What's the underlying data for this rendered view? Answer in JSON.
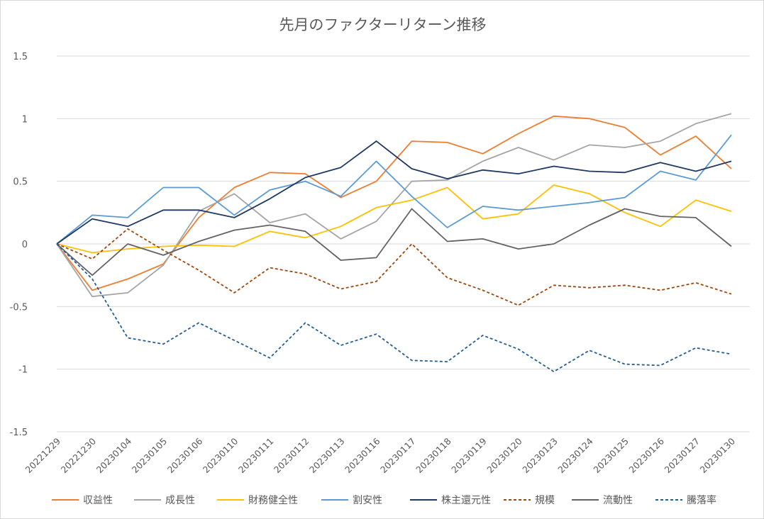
{
  "chart_data": {
    "type": "line",
    "title": "先月のファクターリターン推移",
    "xlabel": "",
    "ylabel": "",
    "ylim": [
      -1.5,
      1.5
    ],
    "yticks": [
      "1.5",
      "1",
      "0.5",
      "0",
      "-0.5",
      "-1",
      "-1.5"
    ],
    "ytick_values": [
      1.5,
      1,
      0.5,
      0,
      -0.5,
      -1,
      -1.5
    ],
    "grid": true,
    "legend_position": "bottom",
    "categories": [
      "20221229",
      "20221230",
      "20230104",
      "20230105",
      "20230106",
      "20230110",
      "20230111",
      "20230112",
      "20230113",
      "20230116",
      "20230117",
      "20230118",
      "20230119",
      "20230120",
      "20230123",
      "20230124",
      "20230125",
      "20230126",
      "20230127",
      "20230130"
    ],
    "series": [
      {
        "name": "収益性",
        "color": "#ED7D31",
        "dash": false,
        "values": [
          0,
          -0.37,
          -0.28,
          -0.16,
          0.21,
          0.45,
          0.57,
          0.56,
          0.37,
          0.5,
          0.82,
          0.81,
          0.72,
          0.88,
          1.02,
          1.0,
          0.93,
          0.71,
          0.86,
          0.6
        ]
      },
      {
        "name": "成長性",
        "color": "#A5A5A5",
        "dash": false,
        "values": [
          0,
          -0.42,
          -0.39,
          -0.17,
          0.26,
          0.4,
          0.17,
          0.24,
          0.04,
          0.18,
          0.5,
          0.51,
          0.66,
          0.77,
          0.67,
          0.79,
          0.77,
          0.82,
          0.96,
          1.04
        ]
      },
      {
        "name": "財務健全性",
        "color": "#FFC000",
        "dash": false,
        "values": [
          0,
          -0.07,
          -0.04,
          -0.02,
          -0.01,
          -0.02,
          0.1,
          0.05,
          0.14,
          0.29,
          0.35,
          0.45,
          0.2,
          0.24,
          0.47,
          0.4,
          0.25,
          0.14,
          0.35,
          0.26
        ]
      },
      {
        "name": "割安性",
        "color": "#5B9BD5",
        "dash": false,
        "values": [
          0,
          0.23,
          0.21,
          0.45,
          0.45,
          0.23,
          0.43,
          0.5,
          0.38,
          0.66,
          0.38,
          0.13,
          0.3,
          0.27,
          0.3,
          0.33,
          0.37,
          0.58,
          0.51,
          0.87
        ]
      },
      {
        "name": "株主還元性",
        "color": "#1F3864",
        "dash": false,
        "values": [
          0,
          0.2,
          0.14,
          0.27,
          0.27,
          0.21,
          0.36,
          0.53,
          0.61,
          0.82,
          0.6,
          0.52,
          0.59,
          0.56,
          0.62,
          0.58,
          0.57,
          0.65,
          0.58,
          0.66
        ]
      },
      {
        "name": "規模",
        "color": "#9E480E",
        "dash": true,
        "values": [
          0,
          -0.12,
          0.12,
          -0.05,
          -0.21,
          -0.39,
          -0.19,
          -0.24,
          -0.36,
          -0.3,
          0.0,
          -0.27,
          -0.37,
          -0.49,
          -0.33,
          -0.35,
          -0.33,
          -0.37,
          -0.31,
          -0.4
        ]
      },
      {
        "name": "流動性",
        "color": "#636363",
        "dash": false,
        "values": [
          0,
          -0.25,
          0.0,
          -0.09,
          0.02,
          0.11,
          0.15,
          0.1,
          -0.13,
          -0.11,
          0.28,
          0.02,
          0.04,
          -0.04,
          0.0,
          0.15,
          0.28,
          0.22,
          0.21,
          -0.02
        ]
      },
      {
        "name": "騰落率",
        "color": "#255E91",
        "dash": true,
        "values": [
          0,
          -0.28,
          -0.75,
          -0.8,
          -0.63,
          -0.77,
          -0.91,
          -0.63,
          -0.81,
          -0.72,
          -0.93,
          -0.94,
          -0.73,
          -0.84,
          -1.02,
          -0.85,
          -0.96,
          -0.97,
          -0.83,
          -0.88
        ]
      }
    ]
  }
}
